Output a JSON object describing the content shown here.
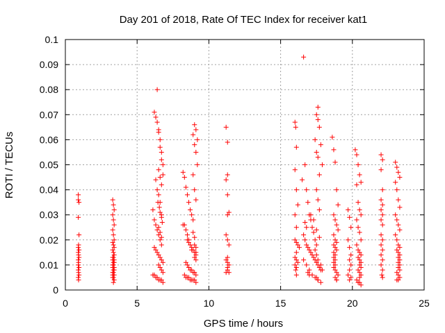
{
  "chart_data": {
    "type": "scatter",
    "title": "Day 201 of 2018, Rate Of TEC Index for receiver kat1",
    "xlabel": "GPS time / hours",
    "ylabel": "ROTI / TECUs",
    "xlim": [
      0,
      25
    ],
    "ylim": [
      0,
      0.1
    ],
    "x_ticks": [
      "0",
      "5",
      "10",
      "15",
      "20",
      "25"
    ],
    "y_ticks": [
      "0",
      "0.01",
      "0.02",
      "0.03",
      "0.04",
      "0.05",
      "0.06",
      "0.07",
      "0.08",
      "0.09",
      "0.1"
    ],
    "grid": true,
    "marker": "+",
    "color": "#ff0000",
    "series": [
      {
        "x": [
          0.9,
          0.9,
          0.95,
          0.9,
          0.95,
          0.92,
          0.9,
          0.95,
          0.9,
          0.92,
          0.95,
          0.9,
          0.92,
          0.9,
          0.95,
          0.9,
          0.92,
          0.95,
          0.9,
          0.92,
          3.3,
          3.35,
          3.4,
          3.3,
          3.35,
          3.4,
          3.3,
          3.35,
          3.4,
          3.3,
          3.35,
          3.4,
          3.3,
          3.35,
          3.4,
          3.3,
          3.35,
          3.4,
          3.3,
          3.35,
          3.4,
          3.3,
          3.35,
          3.4,
          3.3,
          3.35,
          3.4,
          3.3,
          3.35,
          3.4,
          3.3,
          3.35,
          3.4,
          3.3,
          3.35,
          6.1,
          6.2,
          6.3,
          6.4,
          6.5,
          6.6,
          6.7,
          6.8,
          6.2,
          6.3,
          6.4,
          6.5,
          6.6,
          6.7,
          6.4,
          6.5,
          6.6,
          6.7,
          6.8,
          6.3,
          6.4,
          6.5,
          6.6,
          6.7,
          6.2,
          6.3,
          6.4,
          6.5,
          6.6,
          6.7,
          6.8,
          6.5,
          6.6,
          6.7,
          6.5,
          6.6,
          6.7,
          6.8,
          6.1,
          6.2,
          6.3,
          6.4,
          6.5,
          6.6,
          6.7,
          6.8,
          6.45,
          6.55,
          6.6,
          6.7,
          6.75,
          6.5,
          6.6,
          6.7,
          8.2,
          8.3,
          8.4,
          8.5,
          8.6,
          8.7,
          8.8,
          8.9,
          9.0,
          9.1,
          9.2,
          8.3,
          8.4,
          8.5,
          8.6,
          8.7,
          8.8,
          8.9,
          9.0,
          9.1,
          8.9,
          9.0,
          9.1,
          9.2,
          8.9,
          9.0,
          9.1,
          9.0,
          9.1,
          8.4,
          8.5,
          8.6,
          8.7,
          8.8,
          8.9,
          9.0,
          9.1,
          8.3,
          8.4,
          8.5,
          8.6,
          8.7,
          8.8,
          8.9,
          9.0,
          9.1,
          8.2,
          8.5,
          8.6,
          8.8,
          9.0,
          9.1,
          9.0,
          8.9,
          9.1,
          11.2,
          11.3,
          11.3,
          11.2,
          11.3,
          11.4,
          11.3,
          11.2,
          11.3,
          11.4,
          11.3,
          11.2,
          11.3,
          11.4,
          11.3,
          11.3,
          11.2,
          11.4,
          16.0,
          16.05,
          16.1,
          16.0,
          16.1,
          16.2,
          16.0,
          16.1,
          16.0,
          16.1,
          16.2,
          16.3,
          16.1,
          16.0,
          16.1,
          16.2,
          16.0,
          16.1,
          16.05,
          16.1,
          16.5,
          16.6,
          16.7,
          16.8,
          16.9,
          17.0,
          17.1,
          17.2,
          17.3,
          17.4,
          17.5,
          17.6,
          17.7,
          17.8,
          17.9,
          16.6,
          16.7,
          16.8,
          16.9,
          17.0,
          17.1,
          17.2,
          17.3,
          17.4,
          17.5,
          17.6,
          17.7,
          17.8,
          16.6,
          16.8,
          17.0,
          17.2,
          17.4,
          17.6,
          17.8,
          17.1,
          17.3,
          17.5,
          17.7,
          17.4,
          17.5,
          17.6,
          17.7,
          17.5,
          17.6,
          17.5,
          17.6,
          17.7,
          16.9,
          17.0,
          17.5,
          17.6,
          17.4,
          17.5,
          17.6,
          17.8,
          17.9,
          16.7,
          16.8,
          18.6,
          18.7,
          18.8,
          18.9,
          19.0,
          18.7,
          18.8,
          18.9,
          19.0,
          18.7,
          18.8,
          18.9,
          18.7,
          18.8,
          18.9,
          18.7,
          18.8,
          18.7,
          18.8,
          18.7,
          18.8,
          18.7,
          18.8,
          18.9,
          19.0,
          18.8,
          18.9,
          18.9,
          19.7,
          19.8,
          19.9,
          19.7,
          19.8,
          19.9,
          19.8,
          19.9,
          19.8,
          19.7,
          19.9,
          19.8,
          20.2,
          20.3,
          20.4,
          20.5,
          20.6,
          20.3,
          20.4,
          20.5,
          20.6,
          20.3,
          20.4,
          20.5,
          20.6,
          20.3,
          20.4,
          20.5,
          20.6,
          20.4,
          20.5,
          20.6,
          20.5,
          20.6,
          20.4,
          20.5,
          20.6,
          20.5,
          20.3,
          20.4,
          20.5,
          20.6,
          22.0,
          22.1,
          22.0,
          22.1,
          22.0,
          22.1,
          22.0,
          22.1,
          22.0,
          22.1,
          22.0,
          22.1,
          22.0,
          22.1,
          22.0,
          22.1,
          22.0,
          22.1,
          22.05,
          22.1,
          23.0,
          23.1,
          23.2,
          23.3,
          23.0,
          23.1,
          23.2,
          23.3,
          23.0,
          23.1,
          23.2,
          23.3,
          23.0,
          23.1,
          23.2,
          23.3,
          23.1,
          23.2,
          23.3,
          23.2,
          23.3,
          23.2,
          23.3,
          23.2,
          23.3,
          23.1,
          23.2,
          23.3,
          23.1,
          23.2
        ],
        "y": [
          0.038,
          0.036,
          0.035,
          0.029,
          0.022,
          0.018,
          0.017,
          0.016,
          0.015,
          0.014,
          0.013,
          0.012,
          0.011,
          0.01,
          0.009,
          0.008,
          0.007,
          0.006,
          0.005,
          0.004,
          0.036,
          0.034,
          0.032,
          0.03,
          0.028,
          0.026,
          0.024,
          0.022,
          0.02,
          0.019,
          0.018,
          0.017,
          0.016,
          0.015,
          0.014,
          0.013,
          0.013,
          0.012,
          0.012,
          0.011,
          0.011,
          0.01,
          0.01,
          0.009,
          0.009,
          0.008,
          0.008,
          0.007,
          0.007,
          0.006,
          0.005,
          0.005,
          0.004,
          0.006,
          0.003,
          0.032,
          0.071,
          0.069,
          0.067,
          0.064,
          0.06,
          0.055,
          0.05,
          0.028,
          0.026,
          0.024,
          0.022,
          0.02,
          0.018,
          0.08,
          0.063,
          0.057,
          0.052,
          0.046,
          0.044,
          0.04,
          0.038,
          0.035,
          0.03,
          0.017,
          0.016,
          0.015,
          0.014,
          0.013,
          0.012,
          0.011,
          0.048,
          0.045,
          0.042,
          0.01,
          0.009,
          0.008,
          0.007,
          0.006,
          0.006,
          0.005,
          0.005,
          0.004,
          0.004,
          0.004,
          0.003,
          0.035,
          0.033,
          0.031,
          0.029,
          0.027,
          0.025,
          0.023,
          0.021,
          0.047,
          0.045,
          0.041,
          0.038,
          0.035,
          0.032,
          0.03,
          0.028,
          0.066,
          0.064,
          0.06,
          0.026,
          0.024,
          0.022,
          0.02,
          0.018,
          0.017,
          0.016,
          0.015,
          0.014,
          0.062,
          0.058,
          0.055,
          0.05,
          0.046,
          0.04,
          0.036,
          0.013,
          0.012,
          0.011,
          0.01,
          0.009,
          0.008,
          0.008,
          0.007,
          0.007,
          0.006,
          0.006,
          0.005,
          0.005,
          0.005,
          0.004,
          0.004,
          0.004,
          0.004,
          0.003,
          0.026,
          0.02,
          0.019,
          0.016,
          0.018,
          0.015,
          0.021,
          0.023,
          0.017,
          0.065,
          0.059,
          0.046,
          0.044,
          0.038,
          0.031,
          0.03,
          0.022,
          0.02,
          0.018,
          0.013,
          0.012,
          0.011,
          0.01,
          0.009,
          0.008,
          0.007,
          0.007,
          0.067,
          0.065,
          0.057,
          0.048,
          0.04,
          0.034,
          0.03,
          0.025,
          0.02,
          0.019,
          0.018,
          0.017,
          0.015,
          0.013,
          0.012,
          0.011,
          0.01,
          0.009,
          0.008,
          0.006,
          0.044,
          0.093,
          0.05,
          0.04,
          0.035,
          0.03,
          0.028,
          0.025,
          0.023,
          0.02,
          0.018,
          0.073,
          0.065,
          0.058,
          0.05,
          0.022,
          0.02,
          0.018,
          0.017,
          0.016,
          0.015,
          0.014,
          0.013,
          0.012,
          0.011,
          0.01,
          0.009,
          0.008,
          0.012,
          0.01,
          0.008,
          0.006,
          0.005,
          0.004,
          0.003,
          0.03,
          0.028,
          0.024,
          0.021,
          0.06,
          0.055,
          0.053,
          0.046,
          0.07,
          0.068,
          0.04,
          0.036,
          0.032,
          0.007,
          0.006,
          0.005,
          0.004,
          0.016,
          0.014,
          0.012,
          0.01,
          0.008,
          0.027,
          0.025,
          0.061,
          0.056,
          0.051,
          0.04,
          0.034,
          0.03,
          0.028,
          0.026,
          0.024,
          0.022,
          0.02,
          0.019,
          0.018,
          0.017,
          0.016,
          0.015,
          0.014,
          0.013,
          0.012,
          0.011,
          0.01,
          0.009,
          0.008,
          0.007,
          0.006,
          0.005,
          0.004,
          0.004,
          0.032,
          0.029,
          0.025,
          0.02,
          0.017,
          0.014,
          0.012,
          0.01,
          0.008,
          0.006,
          0.005,
          0.004,
          0.056,
          0.054,
          0.05,
          0.046,
          0.043,
          0.042,
          0.035,
          0.032,
          0.03,
          0.028,
          0.025,
          0.023,
          0.02,
          0.018,
          0.016,
          0.015,
          0.014,
          0.013,
          0.012,
          0.011,
          0.01,
          0.009,
          0.008,
          0.007,
          0.006,
          0.005,
          0.004,
          0.003,
          0.003,
          0.002,
          0.054,
          0.052,
          0.048,
          0.04,
          0.036,
          0.034,
          0.032,
          0.03,
          0.028,
          0.026,
          0.022,
          0.02,
          0.018,
          0.016,
          0.014,
          0.012,
          0.01,
          0.008,
          0.006,
          0.005,
          0.051,
          0.049,
          0.047,
          0.045,
          0.043,
          0.04,
          0.036,
          0.033,
          0.03,
          0.028,
          0.026,
          0.024,
          0.022,
          0.02,
          0.018,
          0.017,
          0.016,
          0.015,
          0.014,
          0.013,
          0.012,
          0.011,
          0.01,
          0.009,
          0.008,
          0.007,
          0.006,
          0.005,
          0.004,
          0.004
        ]
      }
    ]
  }
}
